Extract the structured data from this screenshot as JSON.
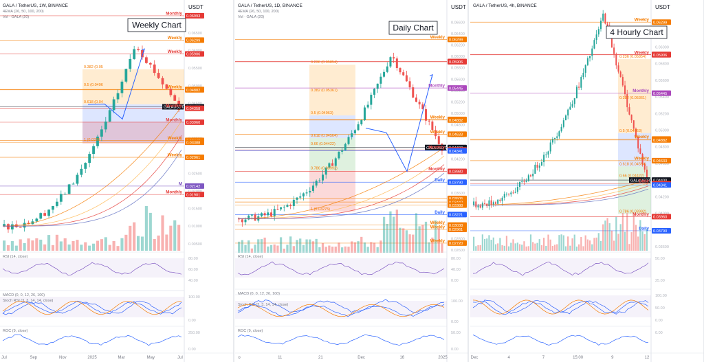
{
  "panels": [
    {
      "id": "weekly",
      "header": {
        "title": "GALA / TetherUS, 1W, BINANCE",
        "sub1": "4EMA (26, 50, 100, 200)",
        "sub2": "Vol · GALA (20)",
        "currency": "USDT"
      },
      "chart_label": "Weekly Chart",
      "price_axis": [
        "0.06500",
        "0.06000",
        "0.05500",
        "0.05000",
        "0.04500",
        "0.04000",
        "0.03500",
        "0.03000",
        "0.02500",
        "0.02000",
        "0.01500",
        "0.01000",
        "0.00500"
      ],
      "levels": [
        {
          "price": 0.06993,
          "label": "0.06993",
          "tag": "Monthly",
          "color": "#e53935"
        },
        {
          "price": 0.06299,
          "label": "0.06299",
          "tag": "Weekly",
          "color": "#f57c00"
        },
        {
          "price": 0.05906,
          "label": "0.05906",
          "tag": "Weekly",
          "color": "#e53935"
        },
        {
          "price": 0.04893,
          "label": "0.04893",
          "tag": "Weekly",
          "color": "#f57c00"
        },
        {
          "price": 0.04882,
          "label": "0.04882",
          "tag": "",
          "color": "#f57c00"
        },
        {
          "price": 0.044,
          "label": "0.04400",
          "tag": "GALAUSDT",
          "color": "#131722"
        },
        {
          "price": 0.04358,
          "label": "0.04358",
          "tag": "Monthly",
          "color": "#e53935"
        },
        {
          "price": 0.0396,
          "label": "0.03960",
          "tag": "Monthly",
          "color": "#e53935"
        },
        {
          "price": 0.03442,
          "label": "0.03442",
          "tag": "Weekly",
          "color": "#f57c00"
        },
        {
          "price": 0.03388,
          "label": "0.03388",
          "tag": "",
          "color": "#f57c00"
        },
        {
          "price": 0.02961,
          "label": "0.02961",
          "tag": "Weekly",
          "color": "#f57c00"
        },
        {
          "price": 0.02142,
          "label": "0.02142",
          "tag": "M",
          "color": "#7e57c2"
        },
        {
          "price": 0.01901,
          "label": "0.01901",
          "tag": "Monthly",
          "color": "#e53935"
        }
      ],
      "fib": [
        {
          "label": "0.382 (0.05",
          "price": 0.0547
        },
        {
          "label": "0.5 (0.0496",
          "price": 0.0496
        },
        {
          "label": "0.618 (0.04",
          "price": 0.0447
        },
        {
          "label": "1 (0.0339",
          "price": 0.0339
        }
      ],
      "indicators": [
        {
          "name": "RSI (14, close)",
          "axis": [
            "80.00",
            "60.00",
            "40.00"
          ]
        },
        {
          "name": "MACD (0, 0, 12, 26, 100)",
          "axis": []
        },
        {
          "name": "Stoch RSI (3, 3, 14, 14, close)",
          "axis": [
            "100.00",
            "0.00"
          ]
        },
        {
          "name": "ROC (9, close)",
          "axis": [
            "250.00",
            "0.00"
          ]
        }
      ],
      "time_axis": [
        "Jul",
        "Sep",
        "Nov",
        "2025",
        "Mar",
        "May",
        "Jul"
      ]
    },
    {
      "id": "daily",
      "header": {
        "title": "GALA / TetherUS, 1D, BINANCE",
        "sub1": "4EMA (26, 50, 100, 200)",
        "sub2": "Vol · GALA (20)",
        "currency": "USDT"
      },
      "chart_label": "Daily Chart",
      "price_axis": [
        "0.06600",
        "0.06400",
        "0.06200",
        "0.06000",
        "0.05800",
        "0.05600",
        "0.05400",
        "0.05200",
        "0.05000",
        "0.04800",
        "0.04600",
        "0.04400",
        "0.04200",
        "0.04000",
        "0.03800",
        "0.03600",
        "0.03400",
        "0.03200",
        "0.03000",
        "0.02800",
        "0.02600"
      ],
      "levels": [
        {
          "price": 0.06299,
          "label": "0.06299",
          "tag": "Weekly",
          "color": "#f57c00"
        },
        {
          "price": 0.05911,
          "label": "0.05911",
          "tag": "",
          "color": "#e53935"
        },
        {
          "price": 0.05906,
          "label": "0.05906",
          "tag": "",
          "color": "#e53935"
        },
        {
          "price": 0.05445,
          "label": "0.05445",
          "tag": "Monthly",
          "color": "#ab47bc"
        },
        {
          "price": 0.04893,
          "label": "0.04893",
          "tag": "Weekly",
          "color": "#f57c00"
        },
        {
          "price": 0.04882,
          "label": "0.04882",
          "tag": "",
          "color": "#f57c00"
        },
        {
          "price": 0.04633,
          "label": "0.04633",
          "tag": "Weekly",
          "color": "#f57c00"
        },
        {
          "price": 0.044,
          "label": "0.04400",
          "tag": "GALAUSDT",
          "color": "#131722"
        },
        {
          "price": 0.04358,
          "label": "0.04358",
          "tag": "Monthly",
          "color": "#e53935"
        },
        {
          "price": 0.04341,
          "label": "0.04341",
          "tag": "",
          "color": "#2962ff"
        },
        {
          "price": 0.0398,
          "label": "0.03980",
          "tag": "Monthly",
          "color": "#e53935"
        },
        {
          "price": 0.0379,
          "label": "0.03790",
          "tag": "Daily",
          "color": "#2962ff"
        },
        {
          "price": 0.03505,
          "label": "0.03505",
          "tag": "",
          "color": "#f57c00"
        },
        {
          "price": 0.03442,
          "label": "0.03442",
          "tag": "",
          "color": "#f57c00"
        },
        {
          "price": 0.03388,
          "label": "0.03388",
          "tag": "",
          "color": "#f57c00"
        },
        {
          "price": 0.03221,
          "label": "0.03221",
          "tag": "Daily",
          "color": "#2962ff"
        },
        {
          "price": 0.03038,
          "label": "0.03038",
          "tag": "Weekly",
          "color": "#f57c00"
        },
        {
          "price": 0.02961,
          "label": "0.02961",
          "tag": "Weekly",
          "color": "#f57c00"
        },
        {
          "price": 0.0272,
          "label": "0.02720",
          "tag": "Weekly",
          "color": "#f57c00"
        }
      ],
      "fib": [
        {
          "label": "0.236 (0.05854)",
          "price": 0.05854
        },
        {
          "label": "0.382 (0.05361)",
          "price": 0.05361
        },
        {
          "label": "0.5 (0.04963)",
          "price": 0.04963
        },
        {
          "label": "0.618 (0.04564)",
          "price": 0.04564
        },
        {
          "label": "0.66 (0.04422)",
          "price": 0.04422
        },
        {
          "label": "0.786 (0.03992)",
          "price": 0.03992
        },
        {
          "label": "1 (0.03275)",
          "price": 0.03275
        }
      ],
      "indicators": [
        {
          "name": "RSI (14, close)",
          "axis": [
            "80.00",
            "40.00",
            "0.00"
          ]
        },
        {
          "name": "MACD (0, 0, 12, 26, 100)",
          "axis": []
        },
        {
          "name": "Stoch RSI (3, 3, 14, 14, close)",
          "axis": [
            "100.00",
            "0.00"
          ]
        },
        {
          "name": "ROC (9, close)",
          "axis": [
            "50.00",
            "0.00"
          ]
        }
      ],
      "time_axis": [
        "o",
        "11",
        "21",
        "Dec",
        "16",
        "2025"
      ]
    },
    {
      "id": "4h",
      "header": {
        "title": "GALA / TetherUS, 4h, BINANCE",
        "sub1": "",
        "sub2": "",
        "currency": "USDT"
      },
      "chart_label": "4 Hourly Chart",
      "price_axis": [
        "0.06299",
        "0.06000",
        "0.05800",
        "0.05600",
        "0.05400",
        "0.05200",
        "0.05000",
        "0.04800",
        "0.04600",
        "0.04400",
        "0.04200",
        "0.04000",
        "0.03800",
        "0.03600"
      ],
      "levels": [
        {
          "price": 0.06299,
          "label": "0.06299",
          "tag": "Weekly",
          "color": "#f57c00"
        },
        {
          "price": 0.05911,
          "label": "0.05911",
          "tag": "",
          "color": "#e53935"
        },
        {
          "price": 0.05906,
          "label": "0.05906",
          "tag": "Weekly",
          "color": "#e53935"
        },
        {
          "price": 0.05445,
          "label": "0.05445",
          "tag": "Monthly",
          "color": "#ab47bc"
        },
        {
          "price": 0.04893,
          "label": "0.04893",
          "tag": "Weekly",
          "color": "#f57c00"
        },
        {
          "price": 0.04882,
          "label": "0.04882",
          "tag": "",
          "color": "#f57c00"
        },
        {
          "price": 0.04633,
          "label": "0.04633",
          "tag": "Weekly",
          "color": "#f57c00"
        },
        {
          "price": 0.044,
          "label": "0.04400",
          "tag": "GALAUSDT",
          "color": "#131722"
        },
        {
          "price": 0.04358,
          "label": "0.04358",
          "tag": "Daily",
          "color": "#e53935"
        },
        {
          "price": 0.04341,
          "label": "0.04341",
          "tag": "",
          "color": "#2962ff"
        },
        {
          "price": 0.0396,
          "label": "0.03960",
          "tag": "Monthly",
          "color": "#e53935"
        },
        {
          "price": 0.0379,
          "label": "0.03790",
          "tag": "Daily",
          "color": "#2962ff"
        }
      ],
      "fib": [
        {
          "label": "0.236 (0.05854)",
          "price": 0.05854
        },
        {
          "label": "0.382 (0.05361)",
          "price": 0.05361
        },
        {
          "label": "0.5 (0.04963)",
          "price": 0.04963
        },
        {
          "label": "0.618 (0.04564)",
          "price": 0.04564
        },
        {
          "label": "0.66 (0.04422)",
          "price": 0.04422
        },
        {
          "label": "0.786 (0.03992)",
          "price": 0.03992
        }
      ],
      "indicators": [
        {
          "name": "",
          "axis": [
            "50.00",
            "25.00"
          ]
        },
        {
          "name": "",
          "axis": []
        },
        {
          "name": "",
          "axis": [
            "100.00",
            "50.00",
            "0.00"
          ]
        },
        {
          "name": "",
          "axis": [
            "0.00"
          ]
        }
      ],
      "time_axis": [
        "Dec",
        "4",
        "7",
        "15:00",
        "9",
        "12"
      ]
    }
  ],
  "colors": {
    "up": "#26a69a",
    "down": "#ef5350",
    "fib_orange": "rgba(255,152,0,0.18)",
    "fib_blue": "rgba(41,98,255,0.16)",
    "fib_green": "rgba(76,175,80,0.18)",
    "fib_red": "rgba(239,83,80,0.22)",
    "projection": "#2962ff"
  }
}
